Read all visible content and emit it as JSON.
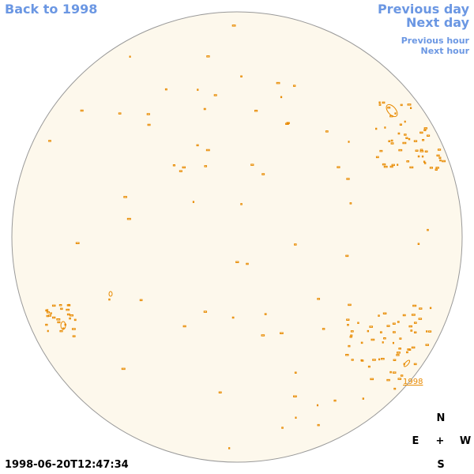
{
  "nav": {
    "back": "Back to 1998",
    "previous_day": "Previous day",
    "next_day": "Next day",
    "previous_hour": "Previous hour",
    "next_hour": "Next hour"
  },
  "timestamp": "1998-06-20T12:47:34",
  "region_label": "1998",
  "compass": {
    "north": "N",
    "east": "E",
    "center": "+",
    "west": "W",
    "south": "S"
  }
}
